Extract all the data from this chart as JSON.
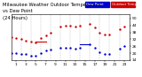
{
  "title": "Milwaukee Weather Outdoor Temperature",
  "title2": "vs Dew Point",
  "title3": "(24 Hours)",
  "legend_temp": "Outdoor Temp",
  "legend_dew": "Dew Point",
  "temp_color": "#cc0000",
  "dew_color": "#0000cc",
  "background_color": "#ffffff",
  "grid_color": "#999999",
  "ylim": [
    14,
    54
  ],
  "xlim": [
    0,
    24
  ],
  "ytick_vals": [
    14,
    20,
    26,
    32,
    38,
    44,
    50
  ],
  "ytick_labels": [
    "14",
    "20",
    "26",
    "32",
    "38",
    "44",
    "50"
  ],
  "xtick_vals": [
    1,
    3,
    5,
    7,
    9,
    11,
    13,
    15,
    17,
    19,
    21,
    23
  ],
  "xtick_labels": [
    "1",
    "3",
    "5",
    "7",
    "9",
    "11",
    "13",
    "15",
    "17",
    "19",
    "21",
    "23"
  ],
  "temp_x": [
    0,
    1,
    2,
    3,
    4,
    5,
    6,
    7,
    8,
    10,
    11,
    12,
    13,
    14,
    16,
    17,
    18,
    19,
    20,
    22,
    23
  ],
  "temp_y": [
    34,
    33,
    32,
    31,
    30,
    29,
    33,
    35,
    38,
    43,
    44,
    44,
    43,
    44,
    45,
    42,
    38,
    36,
    36,
    41,
    43
  ],
  "dew_x": [
    0,
    1,
    2,
    3,
    4,
    5,
    6,
    7,
    8,
    10,
    11,
    12,
    13,
    14,
    16,
    17,
    18,
    19,
    20,
    22,
    23
  ],
  "dew_y": [
    20,
    20,
    19,
    19,
    18,
    18,
    20,
    22,
    23,
    25,
    25,
    25,
    24,
    25,
    28,
    25,
    21,
    19,
    19,
    24,
    26
  ],
  "temp_hline_x1": 5,
  "temp_hline_x2": 7,
  "temp_hline_y": 30,
  "dew_hline_x1": 14,
  "dew_hline_x2": 16,
  "dew_hline_y": 28,
  "dot_size": 3,
  "title_fontsize": 3.8,
  "tick_fontsize": 3.2,
  "legend_fontsize": 2.8,
  "figsize": [
    1.6,
    0.87
  ],
  "dpi": 100
}
